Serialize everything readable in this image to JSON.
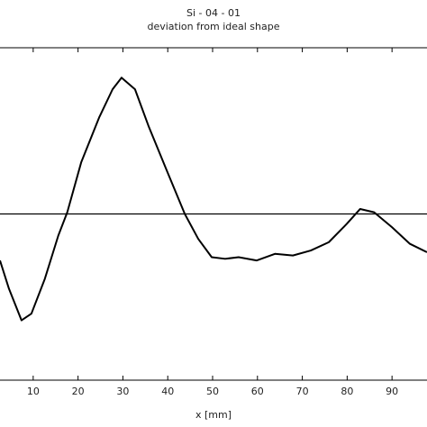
{
  "chart_data": {
    "type": "line",
    "title": "Si - 04 - 01",
    "subtitle": "deviation from ideal shape",
    "x_label": "x [mm]",
    "x": [
      2.6,
      4.6,
      7.4,
      9.6,
      12.6,
      15.6,
      17.6,
      20.7,
      24.7,
      27.7,
      29.7,
      32.7,
      35.7,
      39.8,
      43.8,
      46.8,
      49.8,
      52.8,
      55.8,
      59.8,
      63.9,
      67.9,
      71.9,
      75.9,
      79.9,
      82.9,
      86.0,
      90.0,
      94.0,
      97.8
    ],
    "series": [
      {
        "color": "#000000",
        "values": [
          -0.28,
          -0.45,
          -0.64,
          -0.6,
          -0.39,
          -0.13,
          0.01,
          0.31,
          0.58,
          0.75,
          0.82,
          0.75,
          0.53,
          0.26,
          0.0,
          -0.15,
          -0.26,
          -0.27,
          -0.26,
          -0.28,
          -0.24,
          -0.25,
          -0.22,
          -0.17,
          -0.06,
          0.03,
          0.01,
          -0.08,
          -0.18,
          -0.23
        ]
      }
    ],
    "reference_line": 0,
    "xlim": [
      2.6,
      97.8
    ],
    "ylim": [
      -1,
      1
    ],
    "xticks": [
      10,
      20,
      30,
      40,
      50,
      60,
      70,
      80,
      90
    ]
  }
}
